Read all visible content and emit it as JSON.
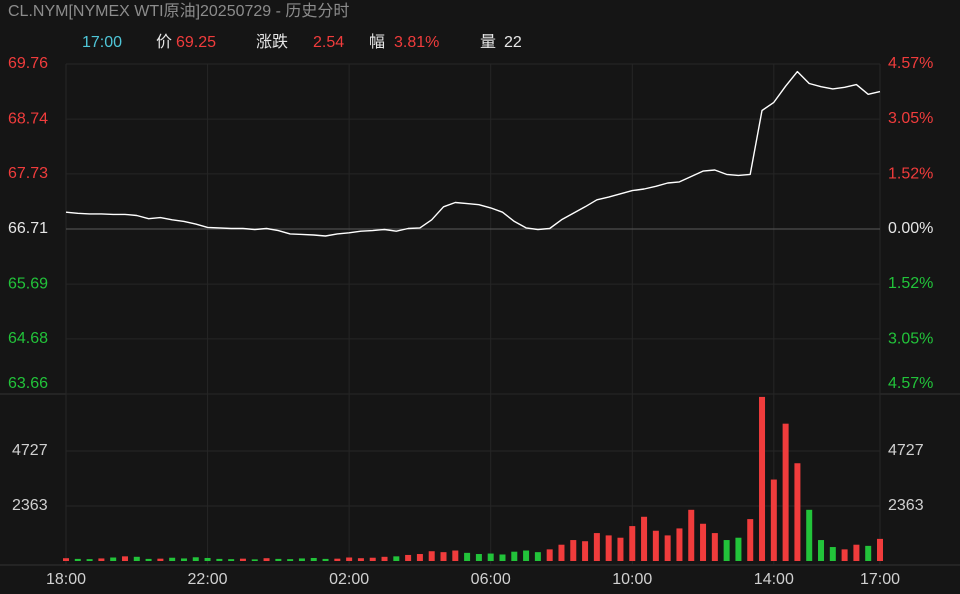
{
  "chart_data": [
    {
      "type": "line",
      "title": "CL.NYM[NYMEX WTI原油]20250729 - 历史分时",
      "info": [
        {
          "text": "17:00",
          "color": "#4fc6d8"
        },
        {
          "text": "价",
          "color": "#e6e6e6"
        },
        {
          "value": 69.25,
          "color": "#f03c3c"
        },
        {
          "text": "涨跌",
          "color": "#e6e6e6"
        },
        {
          "value": 2.54,
          "color": "#f03c3c"
        },
        {
          "text": "幅",
          "color": "#e6e6e6"
        },
        {
          "value": 3.81,
          "label": "3.81%",
          "color": "#f03c3c"
        },
        {
          "text": "量",
          "color": "#e6e6e6"
        },
        {
          "value": 22,
          "color": "#e6e6e6"
        }
      ],
      "x": [
        "18:00",
        "18:20",
        "18:40",
        "19:00",
        "19:20",
        "19:40",
        "20:00",
        "20:20",
        "20:40",
        "21:00",
        "21:20",
        "21:40",
        "22:00",
        "22:20",
        "22:40",
        "23:00",
        "23:20",
        "23:40",
        "00:00",
        "00:20",
        "00:40",
        "01:00",
        "01:20",
        "01:40",
        "02:00",
        "02:20",
        "02:40",
        "03:00",
        "03:20",
        "03:40",
        "04:00",
        "04:20",
        "04:40",
        "05:00",
        "05:20",
        "05:40",
        "06:00",
        "06:20",
        "06:40",
        "07:00",
        "07:20",
        "07:40",
        "08:00",
        "08:20",
        "08:40",
        "09:00",
        "09:20",
        "09:40",
        "10:00",
        "10:20",
        "10:40",
        "11:00",
        "11:20",
        "11:40",
        "12:00",
        "12:20",
        "12:40",
        "13:00",
        "13:20",
        "13:40",
        "14:00",
        "14:20",
        "14:40",
        "15:00",
        "15:20",
        "15:40",
        "16:00",
        "16:20",
        "16:40",
        "17:00"
      ],
      "values": [
        67.02,
        67.0,
        66.99,
        66.99,
        66.98,
        66.98,
        66.96,
        66.9,
        66.92,
        66.88,
        66.85,
        66.8,
        66.74,
        66.73,
        66.72,
        66.72,
        66.7,
        66.72,
        66.68,
        66.62,
        66.61,
        66.6,
        66.58,
        66.62,
        66.64,
        66.67,
        66.68,
        66.7,
        66.67,
        66.72,
        66.73,
        66.88,
        67.12,
        67.2,
        67.18,
        67.16,
        67.1,
        67.02,
        66.85,
        66.73,
        66.7,
        66.72,
        66.88,
        67.0,
        67.12,
        67.25,
        67.3,
        67.36,
        67.42,
        67.45,
        67.5,
        67.56,
        67.58,
        67.68,
        67.78,
        67.8,
        67.72,
        67.7,
        67.72,
        68.9,
        69.05,
        69.35,
        69.62,
        69.4,
        69.34,
        69.3,
        69.33,
        69.38,
        69.2,
        69.25
      ],
      "color": "#ffffff",
      "up_color": "#f03c3c",
      "down_color": "#22c33a",
      "flat_color": "#e6e6e6",
      "ylim": [
        63.66,
        69.76
      ],
      "yticks": [
        69.76,
        68.74,
        67.73,
        66.71,
        65.69,
        64.68,
        63.66
      ],
      "y2lim": [
        -4.57,
        4.57
      ],
      "y2ticks": [
        {
          "value": 4.57,
          "label": "4.57%"
        },
        {
          "value": 3.05,
          "label": "3.05%"
        },
        {
          "value": 1.52,
          "label": "1.52%"
        },
        {
          "value": 0,
          "label": "0.00%"
        },
        {
          "value": -1.52,
          "label": "1.52%"
        },
        {
          "value": -3.05,
          "label": "3.05%"
        },
        {
          "value": -4.57,
          "label": "4.57%"
        }
      ],
      "xticks": [
        "18:00",
        "22:00",
        "02:00",
        "06:00",
        "10:00",
        "14:00",
        "17:00"
      ],
      "grid": true
    },
    {
      "type": "bar",
      "values": [
        120,
        90,
        80,
        110,
        150,
        200,
        180,
        90,
        100,
        140,
        110,
        160,
        130,
        90,
        80,
        100,
        70,
        120,
        90,
        80,
        110,
        130,
        90,
        100,
        150,
        120,
        140,
        180,
        200,
        260,
        300,
        420,
        380,
        450,
        350,
        300,
        320,
        280,
        400,
        450,
        380,
        500,
        700,
        900,
        850,
        1200,
        1100,
        1000,
        1500,
        1900,
        1300,
        1100,
        1400,
        2200,
        1600,
        1200,
        900,
        1000,
        1800,
        7050,
        3500,
        5900,
        4200,
        2200,
        900,
        600,
        500,
        700,
        650,
        950
      ],
      "up_color": "#f03c3c",
      "down_color": "#22c33a",
      "ylim": [
        0,
        7175
      ],
      "yticks": [
        4727,
        2363
      ],
      "grid": true
    }
  ]
}
